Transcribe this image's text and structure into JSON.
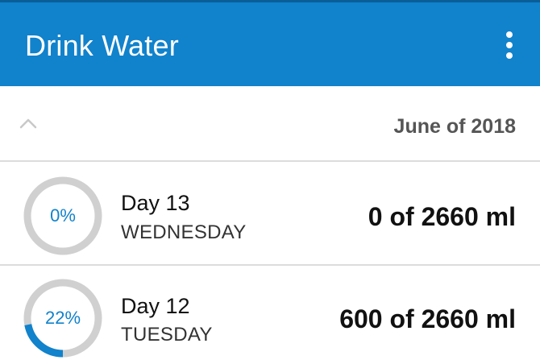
{
  "app": {
    "title": "Drink Water",
    "accent_color": "#1182cc",
    "menu_icon": "more-vert-icon"
  },
  "month": {
    "label": "June of 2018",
    "collapse_icon": "chevron-up-icon"
  },
  "days": [
    {
      "day": "Day 13",
      "weekday": "WEDNESDAY",
      "percent_label": "0%",
      "progress": 0,
      "amount": "0 of 2660 ml"
    },
    {
      "day": "Day 12",
      "weekday": "TUESDAY",
      "percent_label": "22%",
      "progress": 0.22,
      "amount": "600 of 2660 ml"
    }
  ]
}
